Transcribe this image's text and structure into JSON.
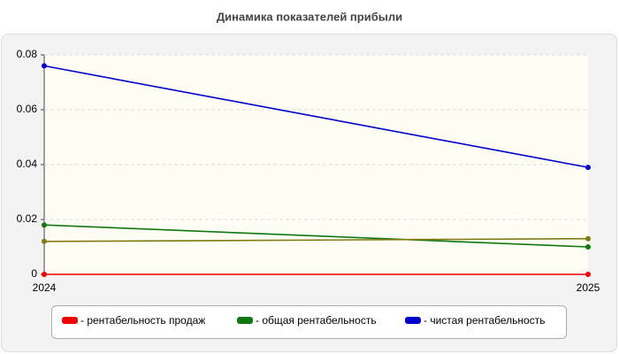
{
  "chart_data": {
    "type": "line",
    "title": "Динамика показателей прибыли",
    "categories": [
      "2024",
      "2025"
    ],
    "series": [
      {
        "name": "- рентабельность продаж",
        "color": "#ee0000",
        "values": [
          0,
          0
        ]
      },
      {
        "name": "- общая рентабельность",
        "color": "#117711",
        "values": [
          0.018,
          0.01
        ]
      },
      {
        "name": "- чистая рентабельность",
        "color": "#0000cc",
        "values": [
          0.076,
          0.039
        ]
      },
      {
        "color": "#807a10",
        "values": [
          0.012,
          0.013
        ]
      }
    ],
    "ylim": [
      0,
      0.08
    ],
    "yticks": [
      0,
      0.02,
      0.04,
      0.06,
      0.08
    ],
    "grid": true
  }
}
